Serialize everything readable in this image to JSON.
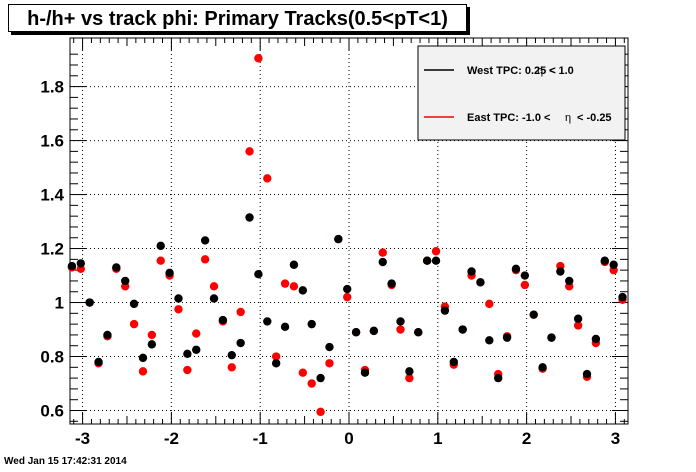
{
  "title": "h-/h+ vs track phi: Primary Tracks(0.5<pT<1)",
  "footer_timestamp": "Wed Jan 15 17:42:31 2014",
  "legend": [
    {
      "prefix": "West TPC: 0.25 <",
      "eta_symbol": "η",
      "suffix": "< 1.0",
      "color": "#000000"
    },
    {
      "prefix": "East TPC: -1.0 <",
      "eta_symbol": "η",
      "suffix": "< -0.25",
      "color": "#ff0000"
    }
  ],
  "chart_data": {
    "type": "scatter",
    "title": "h-/h+ vs track phi: Primary Tracks(0.5<pT<1)",
    "xlabel": "",
    "ylabel": "",
    "xlim": [
      -3.1416,
      3.1416
    ],
    "ylim": [
      0.55,
      1.98
    ],
    "x_ticks": [
      -3,
      -2,
      -1,
      0,
      1,
      2,
      3
    ],
    "y_ticks": [
      0.6,
      0.8,
      1,
      1.2,
      1.4,
      1.6,
      1.8
    ],
    "y_tick_labels": [
      "0.6",
      "0.8",
      "1",
      "1.2",
      "1.4",
      "1.6",
      "1.8"
    ],
    "grid": true,
    "legend_position": "top-right",
    "series": [
      {
        "name": "West TPC: 0.25 < η < 1.0",
        "color": "#000000",
        "x": [
          -3.12,
          -3.02,
          -2.92,
          -2.82,
          -2.72,
          -2.62,
          -2.52,
          -2.42,
          -2.32,
          -2.22,
          -2.12,
          -2.02,
          -1.92,
          -1.82,
          -1.72,
          -1.62,
          -1.52,
          -1.42,
          -1.32,
          -1.22,
          -1.12,
          -1.02,
          -0.92,
          -0.82,
          -0.72,
          -0.62,
          -0.52,
          -0.42,
          -0.32,
          -0.22,
          -0.12,
          -0.02,
          0.08,
          0.18,
          0.28,
          0.38,
          0.48,
          0.58,
          0.68,
          0.78,
          0.88,
          0.98,
          1.08,
          1.18,
          1.28,
          1.38,
          1.48,
          1.58,
          1.68,
          1.78,
          1.88,
          1.98,
          2.08,
          2.18,
          2.28,
          2.38,
          2.48,
          2.58,
          2.68,
          2.78,
          2.88,
          2.98,
          3.08
        ],
        "y": [
          1.135,
          1.145,
          1.0,
          0.78,
          0.88,
          1.13,
          1.08,
          0.995,
          0.795,
          0.845,
          1.21,
          1.11,
          1.015,
          0.81,
          0.825,
          1.23,
          1.015,
          0.935,
          0.805,
          0.85,
          1.315,
          1.105,
          0.93,
          0.775,
          0.91,
          1.14,
          1.045,
          0.92,
          0.72,
          0.835,
          1.235,
          1.05,
          0.89,
          0.74,
          0.895,
          1.15,
          1.07,
          0.93,
          0.745,
          0.89,
          1.155,
          1.155,
          0.97,
          0.78,
          0.9,
          1.115,
          1.075,
          0.86,
          0.72,
          0.87,
          1.125,
          1.1,
          0.955,
          0.76,
          0.87,
          1.115,
          1.08,
          0.94,
          0.735,
          0.865,
          1.155,
          1.14,
          1.02
        ]
      },
      {
        "name": "East TPC: -1.0 < η < -0.25",
        "color": "#ff0000",
        "x": [
          -3.12,
          -3.02,
          -2.92,
          -2.82,
          -2.72,
          -2.62,
          -2.52,
          -2.42,
          -2.32,
          -2.22,
          -2.12,
          -2.02,
          -1.92,
          -1.82,
          -1.72,
          -1.62,
          -1.52,
          -1.42,
          -1.32,
          -1.22,
          -1.12,
          -1.02,
          -0.92,
          -0.82,
          -0.72,
          -0.62,
          -0.52,
          -0.42,
          -0.32,
          -0.22,
          -0.12,
          -0.02,
          0.08,
          0.18,
          0.28,
          0.38,
          0.48,
          0.58,
          0.68,
          0.78,
          0.88,
          0.98,
          1.08,
          1.18,
          1.28,
          1.38,
          1.48,
          1.58,
          1.68,
          1.78,
          1.88,
          1.98,
          2.08,
          2.18,
          2.28,
          2.38,
          2.48,
          2.58,
          2.68,
          2.78,
          2.88,
          2.98,
          3.08
        ],
        "y": [
          1.13,
          1.125,
          1.0,
          0.775,
          0.875,
          1.125,
          1.06,
          0.92,
          0.745,
          0.88,
          1.155,
          1.1,
          0.975,
          0.75,
          0.885,
          1.16,
          1.06,
          0.93,
          0.76,
          0.965,
          1.56,
          1.905,
          1.46,
          0.8,
          1.07,
          1.06,
          0.74,
          0.7,
          0.595,
          0.775,
          1.235,
          1.02,
          0.89,
          0.75,
          0.895,
          1.185,
          1.065,
          0.9,
          0.72,
          0.89,
          1.155,
          1.19,
          0.985,
          0.77,
          0.9,
          1.1,
          1.075,
          0.995,
          0.735,
          0.875,
          1.12,
          1.065,
          0.955,
          0.755,
          0.87,
          1.135,
          1.06,
          0.915,
          0.725,
          0.85,
          1.15,
          1.12,
          1.01
        ]
      }
    ]
  }
}
